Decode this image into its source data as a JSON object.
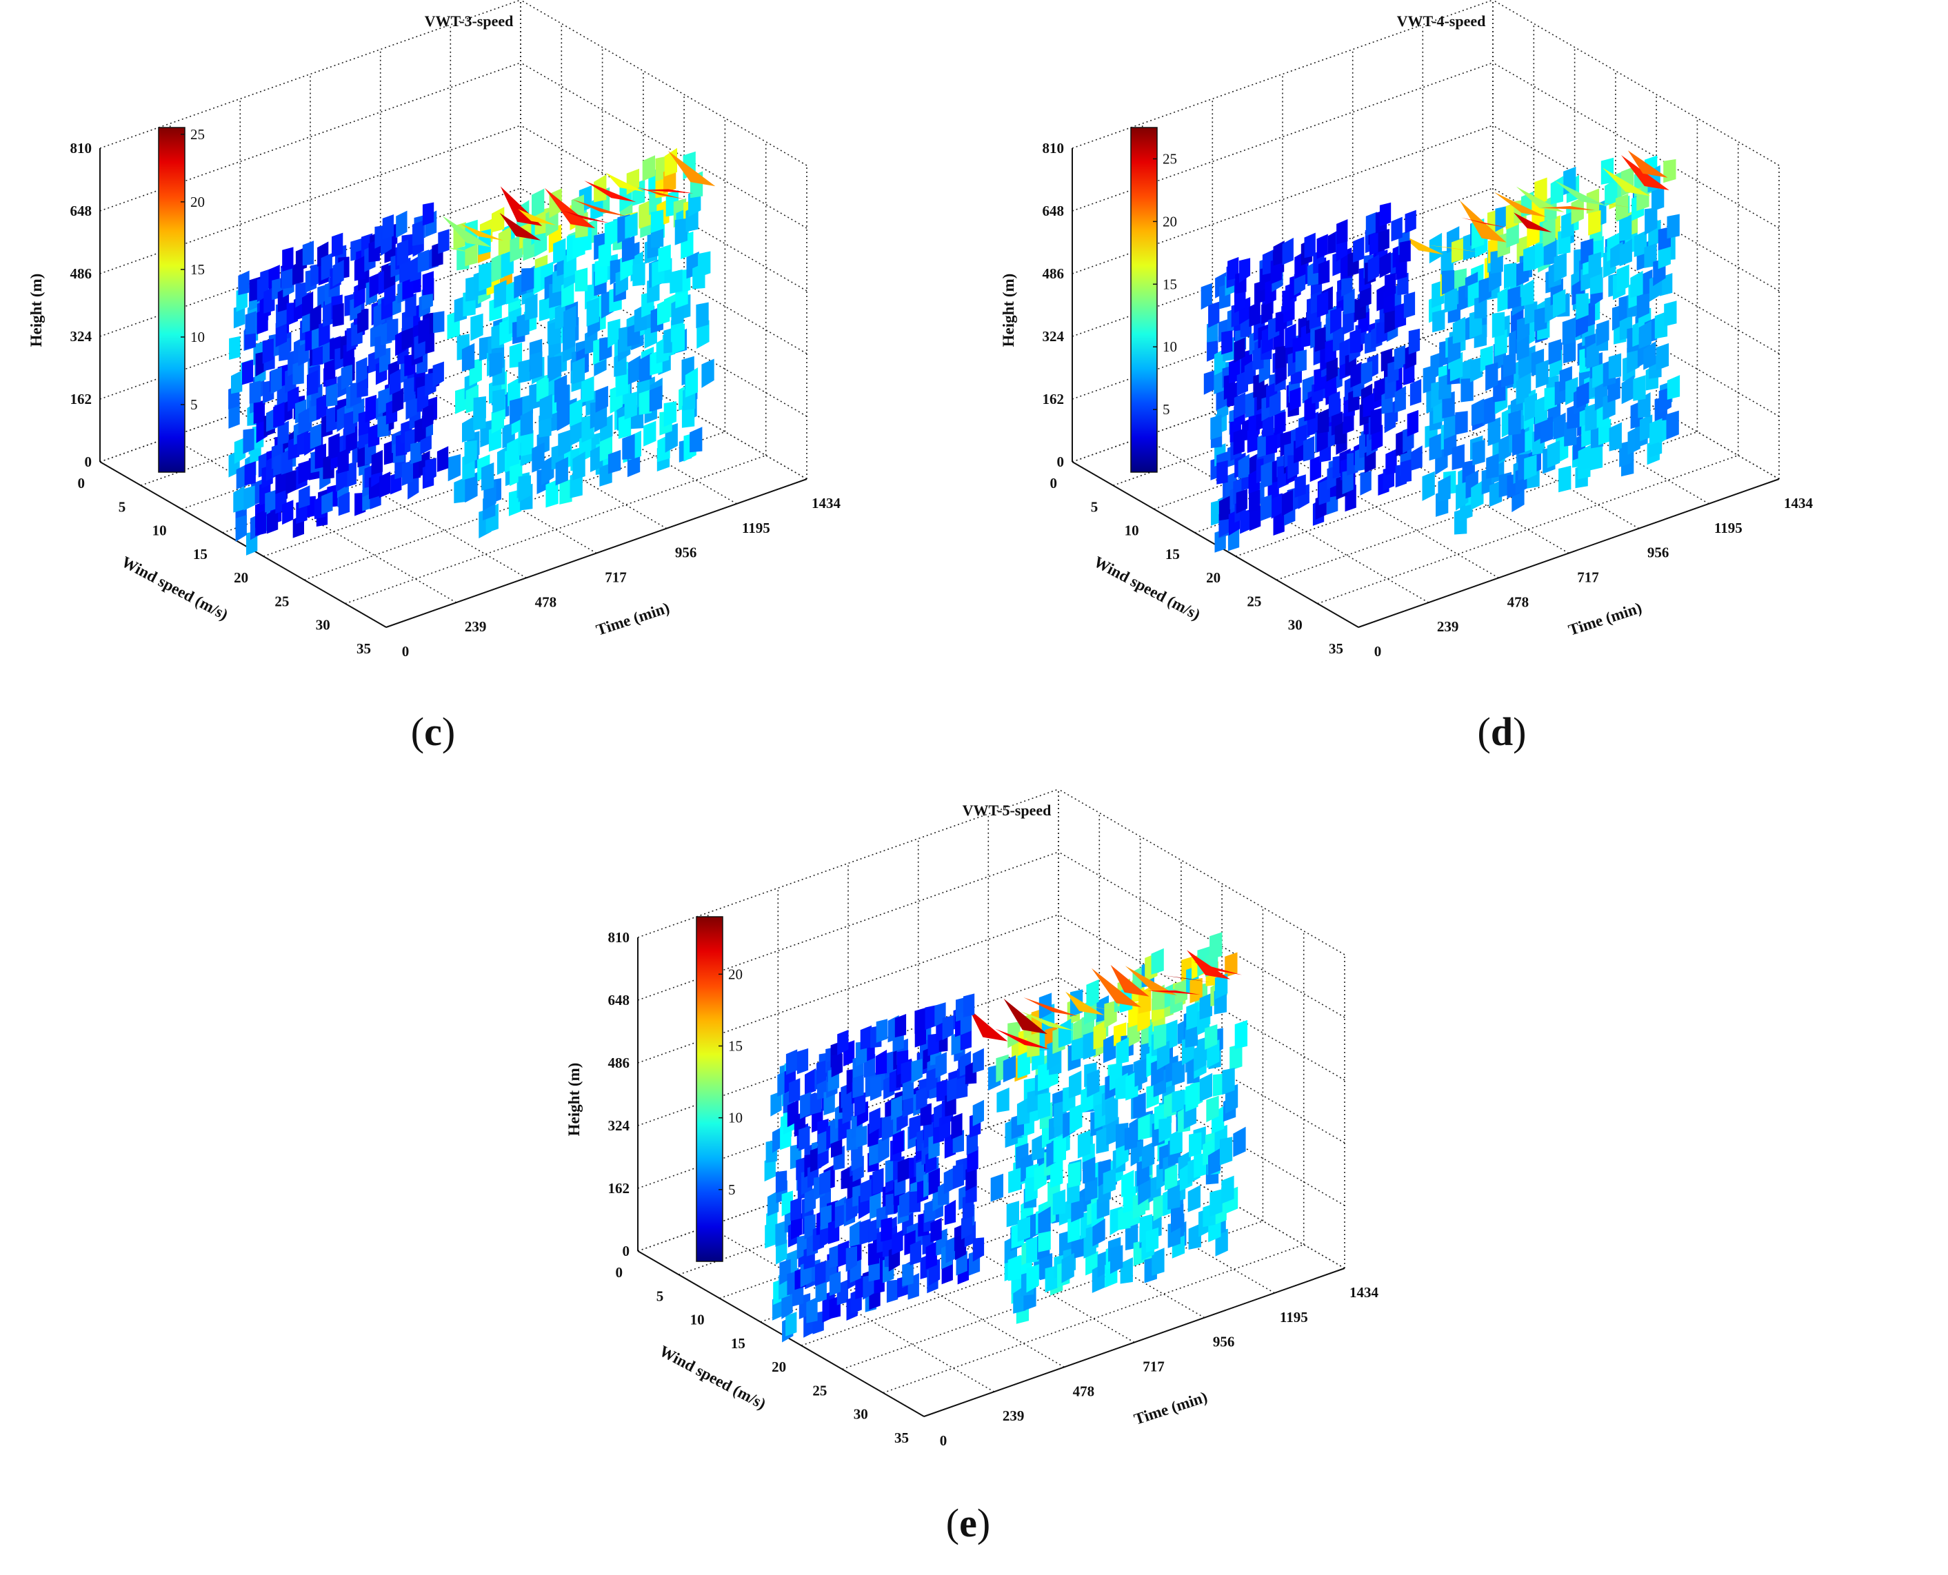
{
  "chart_data": [
    {
      "type": "surface3d",
      "title": "VWT-3-speed",
      "caption": "c",
      "height_label": "Height (m)",
      "height_ticks": [
        "0",
        "162",
        "324",
        "486",
        "648",
        "810"
      ],
      "wind_label": "Wind speed (m/s)",
      "wind_ticks": [
        "0",
        "5",
        "10",
        "15",
        "20",
        "25",
        "30",
        "35"
      ],
      "time_label": "Time (min)",
      "time_ticks": [
        "0",
        "239",
        "478",
        "717",
        "956",
        "1195",
        "1434"
      ],
      "colorbar_ticks": [
        "5",
        "10",
        "15",
        "20",
        "25"
      ],
      "colorbar_max": 25.5,
      "peak_speed": 25
    },
    {
      "type": "surface3d",
      "title": "VWT-4-speed",
      "caption": "d",
      "height_label": "Height (m)",
      "height_ticks": [
        "0",
        "162",
        "324",
        "486",
        "648",
        "810"
      ],
      "wind_label": "Wind speed (m/s)",
      "wind_ticks": [
        "0",
        "5",
        "10",
        "15",
        "20",
        "25",
        "30",
        "35"
      ],
      "time_label": "Time (min)",
      "time_ticks": [
        "0",
        "239",
        "478",
        "717",
        "956",
        "1195",
        "1434"
      ],
      "colorbar_ticks": [
        "5",
        "10",
        "15",
        "20",
        "25"
      ],
      "colorbar_max": 27.5,
      "peak_speed": 27
    },
    {
      "type": "surface3d",
      "title": "VWT-5-speed",
      "caption": "e",
      "height_label": "Height (m)",
      "height_ticks": [
        "0",
        "162",
        "324",
        "486",
        "648",
        "810"
      ],
      "wind_label": "Wind speed (m/s)",
      "wind_ticks": [
        "0",
        "5",
        "10",
        "15",
        "20",
        "25",
        "30",
        "35"
      ],
      "time_label": "Time (min)",
      "time_ticks": [
        "0",
        "239",
        "478",
        "717",
        "956",
        "1195",
        "1434"
      ],
      "colorbar_ticks": [
        "5",
        "10",
        "15",
        "20"
      ],
      "colorbar_max": 24,
      "peak_speed": 24
    }
  ]
}
